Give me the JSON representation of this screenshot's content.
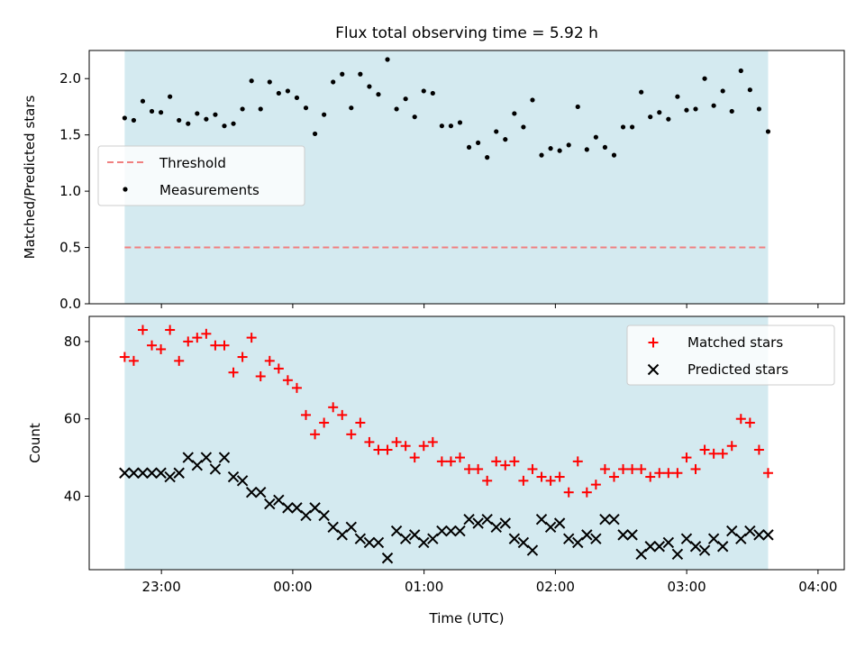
{
  "chart_data": {
    "title": "Flux total observing time = 5.92 h",
    "xlabel": "Time (UTC)",
    "x_unit": "hours after 22:00 UTC",
    "xlim": [
      0.45,
      6.2
    ],
    "shaded_range": [
      0.72,
      5.62
    ],
    "x_ticks": [
      {
        "x": 1.0,
        "label": "23:00"
      },
      {
        "x": 2.0,
        "label": "00:00"
      },
      {
        "x": 3.0,
        "label": "01:00"
      },
      {
        "x": 4.0,
        "label": "02:00"
      },
      {
        "x": 5.0,
        "label": "03:00"
      },
      {
        "x": 6.0,
        "label": "04:00"
      }
    ],
    "colors": {
      "shade": "#d4eaf0",
      "threshold": "#f08080",
      "matched": "#ff0000",
      "predicted": "#000000",
      "measurement": "#000000"
    },
    "panels": [
      {
        "type": "scatter",
        "ylabel": "Matched/Predicted stars",
        "ylim": [
          0,
          2.25
        ],
        "y_ticks": [
          "0.0",
          "0.5",
          "1.0",
          "1.5",
          "2.0"
        ],
        "threshold": 0.5,
        "legend": {
          "position": "center-left",
          "entries": [
            "Threshold",
            "Measurements"
          ]
        },
        "series": [
          {
            "name": "Measurements",
            "values": [
              1.65,
              1.63,
              1.8,
              1.71,
              1.7,
              1.84,
              1.63,
              1.6,
              1.69,
              1.64,
              1.68,
              1.58,
              1.6,
              1.73,
              1.98,
              1.73,
              1.97,
              1.87,
              1.89,
              1.83,
              1.74,
              1.51,
              1.68,
              1.97,
              2.04,
              1.74,
              2.04,
              1.93,
              1.86,
              2.17,
              1.73,
              1.82,
              1.66,
              1.89,
              1.87,
              1.58,
              1.58,
              1.61,
              1.39,
              1.43,
              1.3,
              1.53,
              1.46,
              1.69,
              1.57,
              1.81,
              1.32,
              1.38,
              1.36,
              1.41,
              1.75,
              1.37,
              1.48,
              1.39,
              1.32,
              1.57,
              1.57,
              1.88,
              1.66,
              1.7,
              1.64,
              1.84,
              1.72,
              1.73,
              2.0,
              1.76,
              1.89,
              1.71,
              2.07,
              1.9,
              1.73,
              1.53
            ]
          }
        ]
      },
      {
        "type": "scatter",
        "ylabel": "Count",
        "ylim": [
          21,
          86.5
        ],
        "y_ticks": [
          "40",
          "60",
          "80"
        ],
        "legend": {
          "position": "top-right",
          "entries": [
            "Matched stars",
            "Predicted stars"
          ]
        },
        "series": [
          {
            "name": "Matched stars",
            "marker": "+",
            "values": [
              76,
              75,
              83,
              79,
              78,
              83,
              75,
              80,
              81,
              82,
              79,
              79,
              72,
              76,
              81,
              71,
              75,
              73,
              70,
              68,
              61,
              56,
              59,
              63,
              61,
              56,
              59,
              54,
              52,
              52,
              54,
              53,
              50,
              53,
              54,
              49,
              49,
              50,
              47,
              47,
              44,
              49,
              48,
              49,
              44,
              47,
              45,
              44,
              45,
              41,
              49,
              41,
              43,
              47,
              45,
              47,
              47,
              47,
              45,
              46,
              46,
              46,
              50,
              47,
              52,
              51,
              51,
              53,
              60,
              59,
              52,
              46
            ]
          },
          {
            "name": "Predicted stars",
            "marker": "x",
            "values": [
              46,
              46,
              46,
              46,
              46,
              45,
              46,
              50,
              48,
              50,
              47,
              50,
              45,
              44,
              41,
              41,
              38,
              39,
              37,
              37,
              35,
              37,
              35,
              32,
              30,
              32,
              29,
              28,
              28,
              24,
              31,
              29,
              30,
              28,
              29,
              31,
              31,
              31,
              34,
              33,
              34,
              32,
              33,
              29,
              28,
              26,
              34,
              32,
              33,
              29,
              28,
              30,
              29,
              34,
              34,
              30,
              30,
              25,
              27,
              27,
              28,
              25,
              29,
              27,
              26,
              29,
              27,
              31,
              29,
              31,
              30,
              30
            ]
          }
        ]
      }
    ]
  }
}
